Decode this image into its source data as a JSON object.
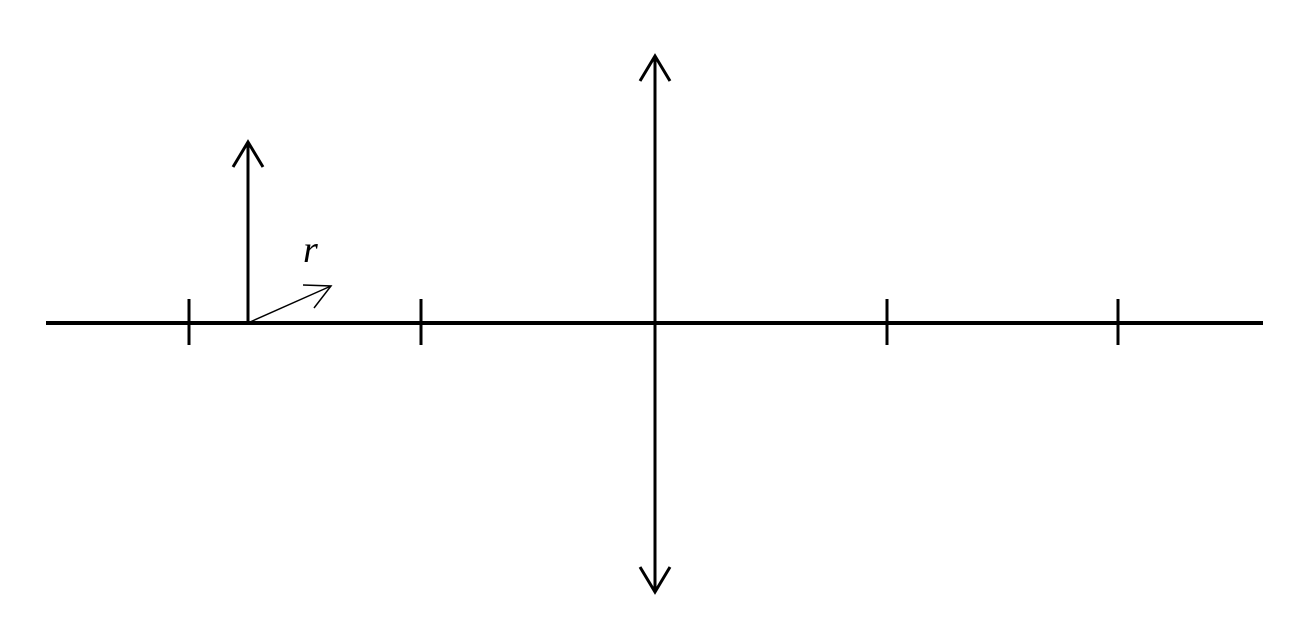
{
  "diagram": {
    "colors": {
      "ink": "#000000",
      "background": "#ffffff"
    },
    "vector_label": "r"
  }
}
